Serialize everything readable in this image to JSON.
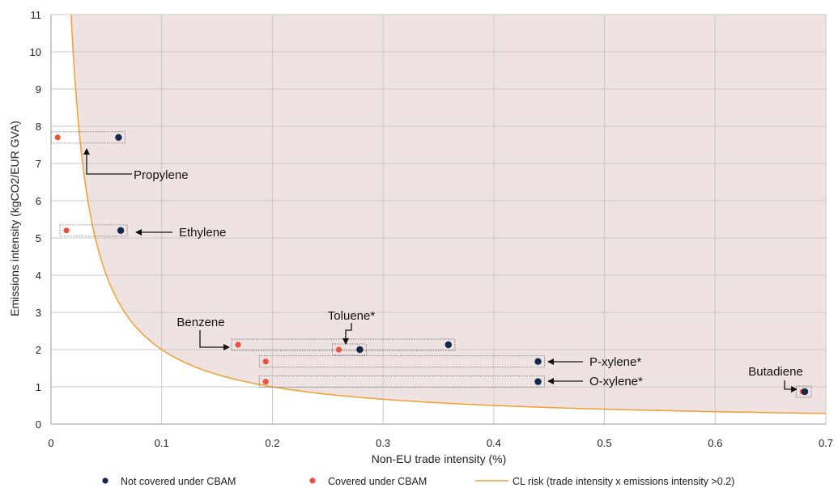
{
  "chart_data": {
    "type": "scatter",
    "xlabel": "Non-EU trade intensity (%)",
    "ylabel": "Emissions intensity (kgCO2/EUR GVA)",
    "xlim": [
      0,
      0.7
    ],
    "ylim": [
      0,
      11
    ],
    "x_ticks": [
      "0",
      "0.1",
      "0.2",
      "0.3",
      "0.4",
      "0.5",
      "0.6",
      "0.7"
    ],
    "y_ticks": [
      "0",
      "1",
      "2",
      "3",
      "4",
      "5",
      "6",
      "7",
      "8",
      "9",
      "10",
      "11"
    ],
    "grid": true,
    "legend_position": "bottom",
    "colors": {
      "not_covered": "#13294b",
      "covered": "#e8533a",
      "cl_risk": "#f0a030",
      "risk_area": "#efe2e3",
      "grid": "#c8c8c8"
    },
    "series": [
      {
        "name": "Not covered under CBAM",
        "points": [
          {
            "x": 0.061,
            "y": 7.7
          },
          {
            "x": 0.063,
            "y": 5.2
          },
          {
            "x": 0.359,
            "y": 2.13
          },
          {
            "x": 0.279,
            "y": 2.0
          },
          {
            "x": 0.44,
            "y": 1.68
          },
          {
            "x": 0.44,
            "y": 1.14
          },
          {
            "x": 0.681,
            "y": 0.87
          }
        ]
      },
      {
        "name": "Covered under CBAM",
        "points": [
          {
            "x": 0.006,
            "y": 7.7
          },
          {
            "x": 0.014,
            "y": 5.2
          },
          {
            "x": 0.169,
            "y": 2.13
          },
          {
            "x": 0.26,
            "y": 2.0
          },
          {
            "x": 0.194,
            "y": 1.68
          },
          {
            "x": 0.194,
            "y": 1.14
          },
          {
            "x": 0.679,
            "y": 0.87
          }
        ]
      },
      {
        "name": "CL risk (trade intensity x emissions intensity >0.2)",
        "type": "line",
        "curve_product": 0.2
      }
    ],
    "annotations": [
      {
        "label": "Propylene",
        "y": 7.7
      },
      {
        "label": "Ethylene",
        "y": 5.2
      },
      {
        "label": "Benzene",
        "y": 2.13
      },
      {
        "label": "Toluene*",
        "y": 2.0
      },
      {
        "label": "P-xylene*",
        "y": 1.68
      },
      {
        "label": "O-xylene*",
        "y": 1.14
      },
      {
        "label": "Butadiene",
        "y": 0.87
      }
    ]
  }
}
